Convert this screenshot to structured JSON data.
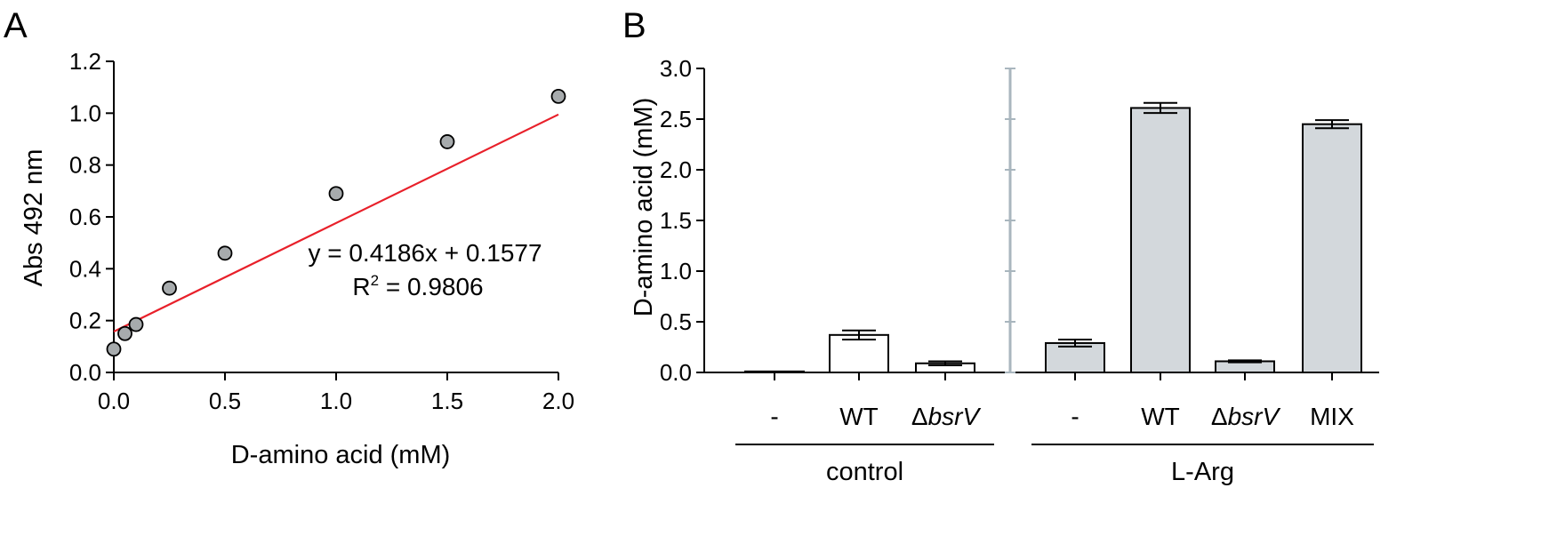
{
  "chart_data": [
    {
      "panel": "A",
      "type": "scatter",
      "xlabel": "D-amino acid (mM)",
      "ylabel": "Abs 492 nm",
      "xlim": [
        0,
        2.0
      ],
      "ylim": [
        0,
        1.2
      ],
      "xticks": [
        "0.0",
        "0.5",
        "1.0",
        "1.5",
        "2.0"
      ],
      "yticks": [
        "0.0",
        "0.2",
        "0.4",
        "0.6",
        "0.8",
        "1.0",
        "1.2"
      ],
      "points": [
        {
          "x": 0.0,
          "y": 0.09
        },
        {
          "x": 0.05,
          "y": 0.15
        },
        {
          "x": 0.1,
          "y": 0.185
        },
        {
          "x": 0.25,
          "y": 0.325
        },
        {
          "x": 0.5,
          "y": 0.46
        },
        {
          "x": 1.0,
          "y": 0.69
        },
        {
          "x": 1.5,
          "y": 0.89
        },
        {
          "x": 2.0,
          "y": 1.065
        }
      ],
      "fit": {
        "slope": 0.4186,
        "intercept": 0.1577,
        "color": "#e8202a"
      },
      "equation": "y = 0.4186x + 0.1577",
      "r2_prefix": "R",
      "r2_sup": "2",
      "r2_suffix": " = 0.9806",
      "point_color": "#a7abad",
      "grid": false
    },
    {
      "panel": "B",
      "type": "bar",
      "ylabel": "D-amino acid (mM)",
      "ylim": [
        0,
        3.0
      ],
      "yticks": [
        "0.0",
        "0.5",
        "1.0",
        "1.5",
        "2.0",
        "2.5",
        "3.0"
      ],
      "bars": [
        {
          "group": 0,
          "prefix": "-",
          "italic": "",
          "value": 0.01,
          "error": 0.0,
          "fill": "#ffffff"
        },
        {
          "group": 0,
          "prefix": "WT",
          "italic": "",
          "value": 0.37,
          "error": 0.045,
          "fill": "#ffffff"
        },
        {
          "group": 0,
          "prefix": "Δ",
          "italic": "bsrV",
          "value": 0.09,
          "error": 0.02,
          "fill": "#ffffff"
        },
        {
          "group": 1,
          "prefix": "-",
          "italic": "",
          "value": 0.29,
          "error": 0.035,
          "fill": "#d3d8dc"
        },
        {
          "group": 1,
          "prefix": "WT",
          "italic": "",
          "value": 2.61,
          "error": 0.05,
          "fill": "#d3d8dc"
        },
        {
          "group": 1,
          "prefix": "Δ",
          "italic": "bsrV",
          "value": 0.11,
          "error": 0.01,
          "fill": "#d3d8dc"
        },
        {
          "group": 1,
          "prefix": "MIX",
          "italic": "",
          "value": 2.45,
          "error": 0.04,
          "fill": "#d3d8dc"
        }
      ],
      "groups": [
        "control",
        "L-Arg"
      ],
      "divider_color": "#a9b6be",
      "grid": false
    }
  ]
}
